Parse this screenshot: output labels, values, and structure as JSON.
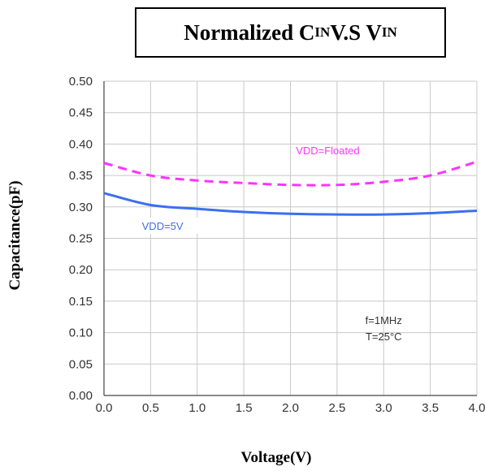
{
  "title": {
    "main": "Normalized C",
    "sub1": "IN",
    "mid": " V.S V",
    "sub2": "IN"
  },
  "chart_data": {
    "type": "line",
    "title": "Normalized CIN V.S VIN",
    "xlabel": "Voltage(V)",
    "ylabel": "Capacitance(pF)",
    "xlim": [
      0.0,
      4.0
    ],
    "ylim": [
      0.0,
      0.5
    ],
    "grid": true,
    "x_ticks": [
      "0.0",
      "0.5",
      "1.0",
      "1.5",
      "2.0",
      "2.5",
      "3.0",
      "3.5",
      "4.0"
    ],
    "y_ticks": [
      "0.00",
      "0.05",
      "0.10",
      "0.15",
      "0.20",
      "0.25",
      "0.30",
      "0.35",
      "0.40",
      "0.45",
      "0.50"
    ],
    "series": [
      {
        "name": "VDD=Floated",
        "color": "#ff33ff",
        "style": "dashed",
        "x": [
          0.0,
          0.5,
          1.0,
          1.5,
          2.0,
          2.5,
          3.0,
          3.5,
          4.0
        ],
        "y": [
          0.37,
          0.35,
          0.342,
          0.338,
          0.335,
          0.335,
          0.34,
          0.35,
          0.372
        ]
      },
      {
        "name": "VDD=5V",
        "color": "#3b6ff0",
        "style": "solid",
        "x": [
          0.0,
          0.5,
          1.0,
          1.5,
          2.0,
          2.5,
          3.0,
          3.5,
          4.0
        ],
        "y": [
          0.322,
          0.303,
          0.297,
          0.292,
          0.289,
          0.288,
          0.288,
          0.29,
          0.294
        ]
      }
    ],
    "annotations": [
      "f=1MHz",
      "T=25°C"
    ]
  }
}
